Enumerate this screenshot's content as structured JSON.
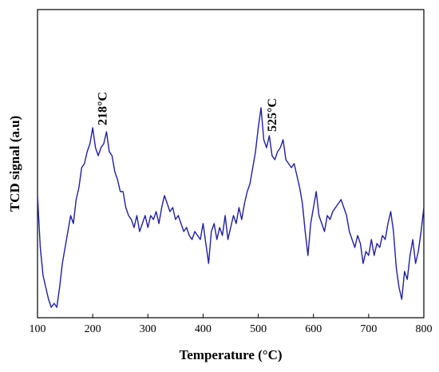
{
  "chart_data": {
    "type": "line",
    "xlabel": "Temperature (°C)",
    "ylabel": "TCD signal (a.u)",
    "annotations": [
      {
        "text": "218°C",
        "x": 218
      },
      {
        "text": "525°C",
        "x": 525
      }
    ],
    "xlim": [
      100,
      800
    ],
    "xticks": [
      100,
      200,
      300,
      400,
      500,
      600,
      700,
      800
    ],
    "ylim": [
      0,
      386
    ],
    "series": [
      {
        "color": "#1f1fa3",
        "x": [
          100,
          105,
          110,
          115,
          120,
          125,
          130,
          135,
          140,
          145,
          150,
          155,
          160,
          165,
          170,
          175,
          180,
          185,
          190,
          195,
          200,
          205,
          210,
          215,
          220,
          225,
          230,
          235,
          240,
          245,
          250,
          255,
          260,
          265,
          270,
          275,
          280,
          285,
          290,
          295,
          300,
          305,
          310,
          315,
          320,
          325,
          330,
          335,
          340,
          345,
          350,
          355,
          360,
          365,
          370,
          375,
          380,
          385,
          390,
          395,
          400,
          405,
          410,
          415,
          420,
          425,
          430,
          435,
          440,
          445,
          450,
          455,
          460,
          465,
          470,
          475,
          480,
          485,
          490,
          495,
          500,
          505,
          510,
          515,
          520,
          525,
          530,
          535,
          540,
          545,
          550,
          555,
          560,
          565,
          570,
          575,
          580,
          585,
          590,
          595,
          600,
          605,
          610,
          615,
          620,
          625,
          630,
          635,
          640,
          645,
          650,
          655,
          660,
          665,
          670,
          675,
          680,
          685,
          690,
          695,
          700,
          705,
          710,
          715,
          720,
          725,
          730,
          735,
          740,
          745,
          750,
          755,
          760,
          765,
          770,
          775,
          780,
          785,
          790,
          795,
          800
        ],
        "values": [
          153,
          88,
          53,
          38,
          23,
          13,
          18,
          13,
          38,
          68,
          88,
          108,
          128,
          118,
          148,
          163,
          188,
          193,
          208,
          218,
          238,
          213,
          203,
          213,
          218,
          233,
          208,
          203,
          183,
          173,
          158,
          158,
          138,
          128,
          123,
          113,
          128,
          108,
          118,
          128,
          113,
          128,
          123,
          133,
          118,
          138,
          153,
          143,
          133,
          138,
          123,
          128,
          118,
          108,
          113,
          103,
          98,
          108,
          103,
          98,
          118,
          93,
          68,
          108,
          118,
          98,
          113,
          103,
          128,
          98,
          113,
          128,
          118,
          138,
          123,
          143,
          158,
          168,
          188,
          208,
          238,
          263,
          223,
          213,
          228,
          203,
          198,
          208,
          213,
          223,
          198,
          193,
          188,
          193,
          178,
          163,
          143,
          108,
          78,
          118,
          138,
          158,
          128,
          118,
          108,
          128,
          123,
          133,
          138,
          143,
          148,
          138,
          128,
          108,
          98,
          88,
          103,
          93,
          68,
          83,
          78,
          98,
          78,
          93,
          88,
          103,
          98,
          118,
          133,
          108,
          63,
          38,
          23,
          58,
          48,
          78,
          98,
          68,
          83,
          108,
          138
        ]
      }
    ]
  }
}
